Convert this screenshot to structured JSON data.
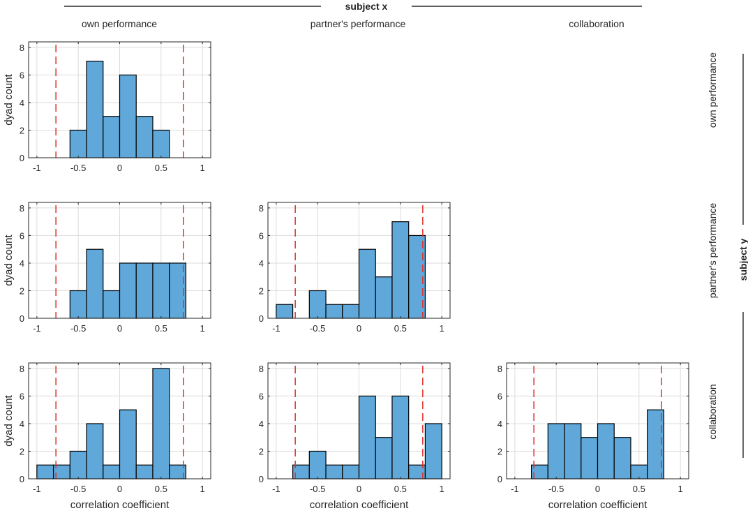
{
  "figure": {
    "column_group_label": "subject x",
    "row_group_label": "subject y",
    "column_titles": [
      "own performance",
      "partner's performance",
      "collaboration"
    ],
    "row_titles": [
      "own performance",
      "partner's performance",
      "collaboration"
    ],
    "bar_color": "#5fa8d9",
    "bar_edge_color": "#000000",
    "threshold_color": "#e0302a",
    "grid_color": "#dcdcdc"
  },
  "chart_data": [
    {
      "type": "bar",
      "panel": "row 1 / col 1",
      "row": 0,
      "col": 0,
      "xlabel": "",
      "ylabel": "dyad count",
      "xlim": [
        -1.1,
        1.1
      ],
      "ylim": [
        0,
        8.4
      ],
      "xticks": [
        -1,
        -0.5,
        0,
        0.5,
        1
      ],
      "xtick_labels": [
        "-1",
        "-0.5",
        "0",
        "0.5",
        "1"
      ],
      "yticks": [
        0,
        2,
        4,
        6,
        8
      ],
      "ytick_labels": [
        "0",
        "2",
        "4",
        "6",
        "8"
      ],
      "bin_width": 0.2,
      "bin_centers": [
        -0.5,
        -0.3,
        -0.1,
        0.1,
        0.3,
        0.5
      ],
      "values": [
        2,
        7,
        3,
        6,
        3,
        2
      ],
      "thresholds": [
        -0.77,
        0.77
      ]
    },
    {
      "type": "bar",
      "panel": "row 2 / col 1",
      "row": 1,
      "col": 0,
      "xlabel": "",
      "ylabel": "dyad count",
      "xlim": [
        -1.1,
        1.1
      ],
      "ylim": [
        0,
        8.4
      ],
      "xticks": [
        -1,
        -0.5,
        0,
        0.5,
        1
      ],
      "xtick_labels": [
        "-1",
        "-0.5",
        "0",
        "0.5",
        "1"
      ],
      "yticks": [
        0,
        2,
        4,
        6,
        8
      ],
      "ytick_labels": [
        "0",
        "2",
        "4",
        "6",
        "8"
      ],
      "bin_width": 0.2,
      "bin_centers": [
        -0.5,
        -0.3,
        -0.1,
        0.1,
        0.3,
        0.5,
        0.7
      ],
      "values": [
        2,
        5,
        2,
        4,
        4,
        4,
        4
      ],
      "thresholds": [
        -0.77,
        0.77
      ]
    },
    {
      "type": "bar",
      "panel": "row 2 / col 2",
      "row": 1,
      "col": 1,
      "xlabel": "",
      "ylabel": "",
      "xlim": [
        -1.1,
        1.1
      ],
      "ylim": [
        0,
        8.4
      ],
      "xticks": [
        -1,
        -0.5,
        0,
        0.5,
        1
      ],
      "xtick_labels": [
        "-1",
        "-0.5",
        "0",
        "0.5",
        "1"
      ],
      "yticks": [
        0,
        2,
        4,
        6,
        8
      ],
      "ytick_labels": [
        "0",
        "2",
        "4",
        "6",
        "8"
      ],
      "bin_width": 0.2,
      "bin_centers": [
        -0.9,
        -0.5,
        -0.3,
        -0.1,
        0.1,
        0.3,
        0.5,
        0.7
      ],
      "values": [
        1,
        2,
        1,
        1,
        5,
        3,
        7,
        6
      ],
      "thresholds": [
        -0.77,
        0.77
      ]
    },
    {
      "type": "bar",
      "panel": "row 3 / col 1",
      "row": 2,
      "col": 0,
      "xlabel": "correlation coefficient",
      "ylabel": "dyad count",
      "xlim": [
        -1.1,
        1.1
      ],
      "ylim": [
        0,
        8.4
      ],
      "xticks": [
        -1,
        -0.5,
        0,
        0.5,
        1
      ],
      "xtick_labels": [
        "-1",
        "-0.5",
        "0",
        "0.5",
        "1"
      ],
      "yticks": [
        0,
        2,
        4,
        6,
        8
      ],
      "ytick_labels": [
        "0",
        "2",
        "4",
        "6",
        "8"
      ],
      "bin_width": 0.2,
      "bin_centers": [
        -0.9,
        -0.7,
        -0.5,
        -0.3,
        -0.1,
        0.1,
        0.3,
        0.5,
        0.7
      ],
      "values": [
        1,
        1,
        2,
        4,
        1,
        5,
        1,
        8,
        1
      ],
      "thresholds": [
        -0.77,
        0.77
      ]
    },
    {
      "type": "bar",
      "panel": "row 3 / col 2",
      "row": 2,
      "col": 1,
      "xlabel": "correlation coefficient",
      "ylabel": "",
      "xlim": [
        -1.1,
        1.1
      ],
      "ylim": [
        0,
        8.4
      ],
      "xticks": [
        -1,
        -0.5,
        0,
        0.5,
        1
      ],
      "xtick_labels": [
        "-1",
        "-0.5",
        "0",
        "0.5",
        "1"
      ],
      "yticks": [
        0,
        2,
        4,
        6,
        8
      ],
      "ytick_labels": [
        "0",
        "2",
        "4",
        "6",
        "8"
      ],
      "bin_width": 0.2,
      "bin_centers": [
        -0.7,
        -0.5,
        -0.3,
        -0.1,
        0.1,
        0.3,
        0.5,
        0.7,
        0.9
      ],
      "values": [
        1,
        2,
        1,
        1,
        6,
        3,
        6,
        1,
        4
      ],
      "thresholds": [
        -0.77,
        0.77
      ]
    },
    {
      "type": "bar",
      "panel": "row 3 / col 3",
      "row": 2,
      "col": 2,
      "xlabel": "correlation coefficient",
      "ylabel": "",
      "xlim": [
        -1.1,
        1.1
      ],
      "ylim": [
        0,
        8.4
      ],
      "xticks": [
        -1,
        -0.5,
        0,
        0.5,
        1
      ],
      "xtick_labels": [
        "-1",
        "-0.5",
        "0",
        "0.5",
        "1"
      ],
      "yticks": [
        0,
        2,
        4,
        6,
        8
      ],
      "ytick_labels": [
        "0",
        "2",
        "4",
        "6",
        "8"
      ],
      "bin_width": 0.2,
      "bin_centers": [
        -0.7,
        -0.5,
        -0.3,
        -0.1,
        0.1,
        0.3,
        0.5,
        0.7
      ],
      "values": [
        1,
        4,
        4,
        3,
        4,
        3,
        1,
        5
      ],
      "thresholds": [
        -0.77,
        0.77
      ]
    }
  ]
}
